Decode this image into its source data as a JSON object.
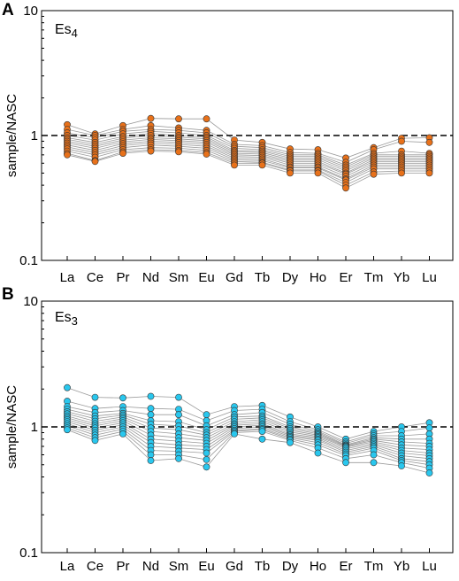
{
  "figure": {
    "colors": {
      "es4": "#E8711A",
      "es3": "#29C7EE",
      "sample_line": "#9a9a9a",
      "reference_line": "#000000"
    }
  },
  "chart_data": [
    {
      "type": "line",
      "panel_label": "A",
      "unit_label": "Es",
      "unit_sub": "4",
      "ylabel": "sample/NASC",
      "xlabel": "",
      "yscale": "log",
      "ylim": [
        0.1,
        10
      ],
      "yticks": [
        "0.1",
        "1",
        "10"
      ],
      "reference_line": 1,
      "categories": [
        "La",
        "Ce",
        "Pr",
        "Nd",
        "Sm",
        "Eu",
        "Gd",
        "Tb",
        "Dy",
        "Ho",
        "Er",
        "Tm",
        "Yb",
        "Lu"
      ],
      "marker_color": "#E8711A",
      "series": [
        {
          "values": [
            1.22,
            1.03,
            1.2,
            1.37,
            1.36,
            1.36,
            0.92,
            0.88,
            0.78,
            0.77,
            0.66,
            0.8,
            0.95,
            0.96
          ]
        },
        {
          "values": [
            1.12,
            1.0,
            1.12,
            1.2,
            1.15,
            1.1,
            0.85,
            0.83,
            0.73,
            0.72,
            0.61,
            0.77,
            0.9,
            0.88
          ]
        },
        {
          "values": [
            1.05,
            0.96,
            1.08,
            1.12,
            1.1,
            1.05,
            0.82,
            0.8,
            0.7,
            0.7,
            0.58,
            0.72,
            0.75,
            0.72
          ]
        },
        {
          "values": [
            1.0,
            0.92,
            1.03,
            1.08,
            1.05,
            1.0,
            0.79,
            0.77,
            0.68,
            0.68,
            0.56,
            0.7,
            0.7,
            0.7
          ]
        },
        {
          "values": [
            0.96,
            0.88,
            0.98,
            1.04,
            1.0,
            0.97,
            0.76,
            0.75,
            0.66,
            0.66,
            0.54,
            0.68,
            0.68,
            0.68
          ]
        },
        {
          "values": [
            0.93,
            0.85,
            0.95,
            1.0,
            0.97,
            0.94,
            0.74,
            0.73,
            0.64,
            0.64,
            0.52,
            0.66,
            0.66,
            0.66
          ]
        },
        {
          "values": [
            0.9,
            0.82,
            0.92,
            0.96,
            0.94,
            0.91,
            0.72,
            0.71,
            0.62,
            0.62,
            0.5,
            0.64,
            0.64,
            0.64
          ]
        },
        {
          "values": [
            0.87,
            0.79,
            0.89,
            0.93,
            0.91,
            0.88,
            0.7,
            0.69,
            0.6,
            0.6,
            0.49,
            0.62,
            0.62,
            0.62
          ]
        },
        {
          "values": [
            0.84,
            0.76,
            0.86,
            0.9,
            0.88,
            0.85,
            0.68,
            0.67,
            0.58,
            0.58,
            0.47,
            0.6,
            0.6,
            0.6
          ]
        },
        {
          "values": [
            0.81,
            0.73,
            0.83,
            0.87,
            0.85,
            0.82,
            0.66,
            0.65,
            0.56,
            0.56,
            0.45,
            0.58,
            0.58,
            0.58
          ]
        },
        {
          "values": [
            0.78,
            0.7,
            0.8,
            0.84,
            0.82,
            0.79,
            0.64,
            0.63,
            0.55,
            0.55,
            0.44,
            0.56,
            0.56,
            0.56
          ]
        },
        {
          "values": [
            0.75,
            0.67,
            0.77,
            0.8,
            0.79,
            0.76,
            0.62,
            0.61,
            0.53,
            0.53,
            0.42,
            0.54,
            0.54,
            0.54
          ]
        },
        {
          "values": [
            0.72,
            0.63,
            0.74,
            0.77,
            0.76,
            0.73,
            0.6,
            0.6,
            0.52,
            0.52,
            0.4,
            0.51,
            0.52,
            0.52
          ]
        },
        {
          "values": [
            0.7,
            0.62,
            0.72,
            0.75,
            0.74,
            0.71,
            0.58,
            0.58,
            0.5,
            0.5,
            0.38,
            0.49,
            0.5,
            0.5
          ]
        }
      ]
    },
    {
      "type": "line",
      "panel_label": "B",
      "unit_label": "Es",
      "unit_sub": "3",
      "ylabel": "sample/NASC",
      "xlabel": "",
      "yscale": "log",
      "ylim": [
        0.1,
        10
      ],
      "yticks": [
        "0.1",
        "1",
        "10"
      ],
      "reference_line": 1,
      "categories": [
        "La",
        "Ce",
        "Pr",
        "Nd",
        "Sm",
        "Eu",
        "Gd",
        "Tb",
        "Dy",
        "Ho",
        "Er",
        "Tm",
        "Yb",
        "Lu"
      ],
      "marker_color": "#29C7EE",
      "series": [
        {
          "values": [
            2.05,
            1.72,
            1.7,
            1.75,
            1.72,
            1.25,
            1.45,
            1.48,
            1.2,
            1.0,
            0.8,
            0.92,
            1.0,
            1.08
          ]
        },
        {
          "values": [
            1.6,
            1.4,
            1.45,
            1.4,
            1.38,
            1.12,
            1.35,
            1.38,
            1.1,
            0.95,
            0.76,
            0.88,
            0.92,
            0.98
          ]
        },
        {
          "values": [
            1.45,
            1.3,
            1.35,
            1.25,
            1.25,
            1.02,
            1.25,
            1.3,
            1.05,
            0.92,
            0.74,
            0.85,
            0.85,
            0.88
          ]
        },
        {
          "values": [
            1.38,
            1.22,
            1.28,
            1.12,
            1.1,
            0.95,
            1.2,
            1.22,
            1.0,
            0.9,
            0.72,
            0.82,
            0.8,
            0.8
          ]
        },
        {
          "values": [
            1.32,
            1.16,
            1.24,
            1.05,
            1.02,
            0.9,
            1.15,
            1.18,
            0.97,
            0.88,
            0.71,
            0.8,
            0.76,
            0.74
          ]
        },
        {
          "values": [
            1.27,
            1.11,
            1.2,
            0.98,
            0.95,
            0.86,
            1.1,
            1.14,
            0.94,
            0.86,
            0.7,
            0.78,
            0.72,
            0.7
          ]
        },
        {
          "values": [
            1.22,
            1.06,
            1.16,
            0.92,
            0.88,
            0.82,
            1.06,
            1.1,
            0.91,
            0.84,
            0.69,
            0.76,
            0.68,
            0.66
          ]
        },
        {
          "values": [
            1.18,
            1.02,
            1.12,
            0.86,
            0.82,
            0.78,
            1.03,
            1.06,
            0.88,
            0.82,
            0.67,
            0.74,
            0.65,
            0.62
          ]
        },
        {
          "values": [
            1.14,
            0.98,
            1.08,
            0.8,
            0.77,
            0.74,
            1.0,
            1.03,
            0.86,
            0.8,
            0.65,
            0.72,
            0.62,
            0.59
          ]
        },
        {
          "values": [
            1.1,
            0.94,
            1.04,
            0.75,
            0.72,
            0.7,
            0.97,
            1.0,
            0.84,
            0.78,
            0.63,
            0.7,
            0.59,
            0.56
          ]
        },
        {
          "values": [
            1.06,
            0.9,
            1.0,
            0.7,
            0.68,
            0.66,
            0.94,
            0.97,
            0.82,
            0.75,
            0.61,
            0.68,
            0.56,
            0.53
          ]
        },
        {
          "values": [
            1.02,
            0.86,
            0.96,
            0.65,
            0.64,
            0.62,
            0.92,
            0.95,
            0.8,
            0.72,
            0.59,
            0.65,
            0.54,
            0.5
          ]
        },
        {
          "values": [
            0.98,
            0.82,
            0.92,
            0.6,
            0.6,
            0.55,
            0.9,
            0.92,
            0.78,
            0.68,
            0.56,
            0.6,
            0.52,
            0.47
          ]
        },
        {
          "values": [
            0.95,
            0.78,
            0.88,
            0.54,
            0.56,
            0.48,
            0.88,
            0.8,
            0.75,
            0.62,
            0.52,
            0.52,
            0.49,
            0.43
          ]
        }
      ]
    }
  ]
}
